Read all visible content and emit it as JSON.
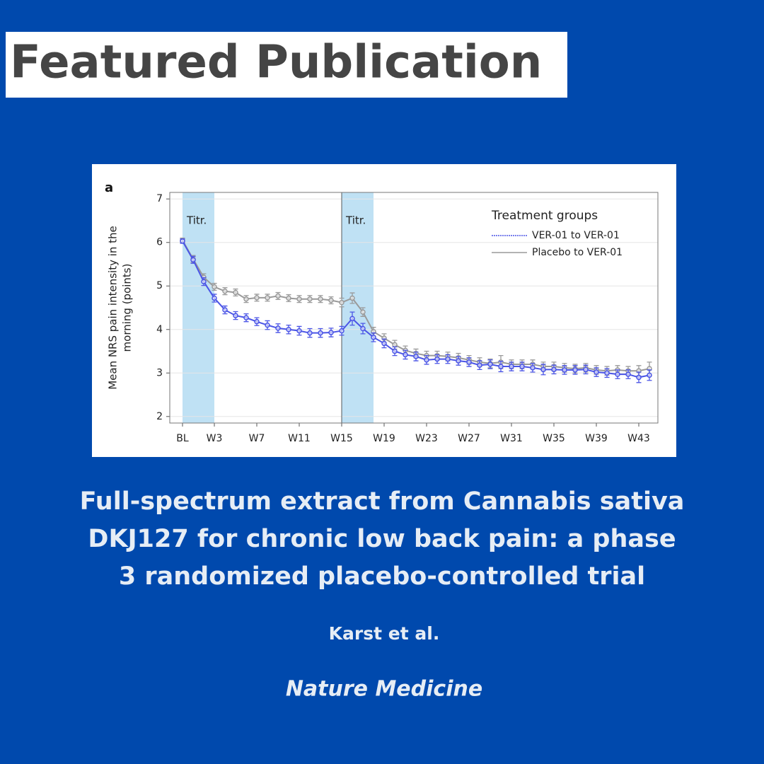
{
  "header": {
    "title": "Featured Publication"
  },
  "chart_data": {
    "type": "line",
    "panel_label": "a",
    "y_label_lines": [
      "Mean NRS pain intensity in the",
      "morning (points)"
    ],
    "legend_title": "Treatment groups",
    "x": [
      0,
      1,
      2,
      3,
      4,
      5,
      6,
      7,
      8,
      9,
      10,
      11,
      12,
      13,
      14,
      15,
      16,
      17,
      18,
      19,
      20,
      21,
      22,
      23,
      24,
      25,
      26,
      27,
      28,
      29,
      30,
      31,
      32,
      33,
      34,
      35,
      36,
      37,
      38,
      39,
      40,
      41,
      42,
      43,
      44
    ],
    "xlim": [
      -1.2,
      44.8
    ],
    "xticks": [
      {
        "value": 0,
        "label": "BL"
      },
      {
        "value": 3,
        "label": "W3"
      },
      {
        "value": 7,
        "label": "W7"
      },
      {
        "value": 11,
        "label": "W11"
      },
      {
        "value": 15,
        "label": "W15"
      },
      {
        "value": 19,
        "label": "W19"
      },
      {
        "value": 23,
        "label": "W23"
      },
      {
        "value": 27,
        "label": "W27"
      },
      {
        "value": 31,
        "label": "W31"
      },
      {
        "value": 35,
        "label": "W35"
      },
      {
        "value": 39,
        "label": "W39"
      },
      {
        "value": 43,
        "label": "W43"
      }
    ],
    "ylim": [
      1.85,
      7.15
    ],
    "yticks": [
      2,
      3,
      4,
      5,
      6,
      7
    ],
    "grid": true,
    "shaded_regions": [
      {
        "label": "Titr.",
        "x": [
          0,
          3
        ]
      },
      {
        "label": "Titr.",
        "x": [
          15,
          18
        ]
      }
    ],
    "vline": 15,
    "series": [
      {
        "name": "VER-01 to VER-01",
        "color": "#4b55e6",
        "values": [
          6.03,
          5.6,
          5.1,
          4.72,
          4.45,
          4.32,
          4.27,
          4.18,
          4.1,
          4.03,
          4.0,
          3.97,
          3.92,
          3.92,
          3.93,
          3.97,
          4.25,
          4.02,
          3.82,
          3.68,
          3.5,
          3.42,
          3.38,
          3.3,
          3.32,
          3.32,
          3.28,
          3.25,
          3.18,
          3.2,
          3.15,
          3.15,
          3.15,
          3.12,
          3.08,
          3.08,
          3.07,
          3.07,
          3.08,
          3.02,
          3.0,
          2.97,
          2.97,
          2.9,
          2.95
        ],
        "errors": [
          0.05,
          0.08,
          0.09,
          0.09,
          0.09,
          0.09,
          0.09,
          0.09,
          0.1,
          0.1,
          0.1,
          0.1,
          0.1,
          0.1,
          0.1,
          0.1,
          0.15,
          0.12,
          0.1,
          0.1,
          0.1,
          0.1,
          0.1,
          0.1,
          0.1,
          0.1,
          0.1,
          0.1,
          0.1,
          0.1,
          0.12,
          0.1,
          0.1,
          0.1,
          0.12,
          0.1,
          0.1,
          0.1,
          0.1,
          0.1,
          0.1,
          0.1,
          0.1,
          0.12,
          0.12
        ]
      },
      {
        "name": "Placebo to VER-01",
        "color": "#9a9a9a",
        "values": [
          6.05,
          5.62,
          5.2,
          4.98,
          4.88,
          4.85,
          4.7,
          4.73,
          4.73,
          4.77,
          4.72,
          4.7,
          4.7,
          4.7,
          4.67,
          4.62,
          4.72,
          4.4,
          3.95,
          3.8,
          3.65,
          3.52,
          3.45,
          3.4,
          3.4,
          3.38,
          3.35,
          3.3,
          3.25,
          3.22,
          3.25,
          3.2,
          3.2,
          3.2,
          3.15,
          3.15,
          3.12,
          3.1,
          3.12,
          3.07,
          3.05,
          3.07,
          3.05,
          3.05,
          3.1
        ],
        "errors": [
          0.05,
          0.08,
          0.08,
          0.08,
          0.08,
          0.08,
          0.08,
          0.08,
          0.08,
          0.08,
          0.08,
          0.08,
          0.08,
          0.08,
          0.08,
          0.1,
          0.12,
          0.1,
          0.1,
          0.1,
          0.1,
          0.1,
          0.1,
          0.1,
          0.1,
          0.1,
          0.1,
          0.1,
          0.1,
          0.1,
          0.15,
          0.1,
          0.1,
          0.1,
          0.1,
          0.1,
          0.1,
          0.1,
          0.1,
          0.1,
          0.1,
          0.1,
          0.1,
          0.12,
          0.15
        ]
      }
    ]
  },
  "publication": {
    "title_lines": [
      "Full-spectrum extract from Cannabis sativa",
      "DKJ127 for chronic low back pain: a phase",
      "3 randomized placebo-controlled trial"
    ],
    "authors": "Karst et al.",
    "journal": "Nature Medicine"
  }
}
